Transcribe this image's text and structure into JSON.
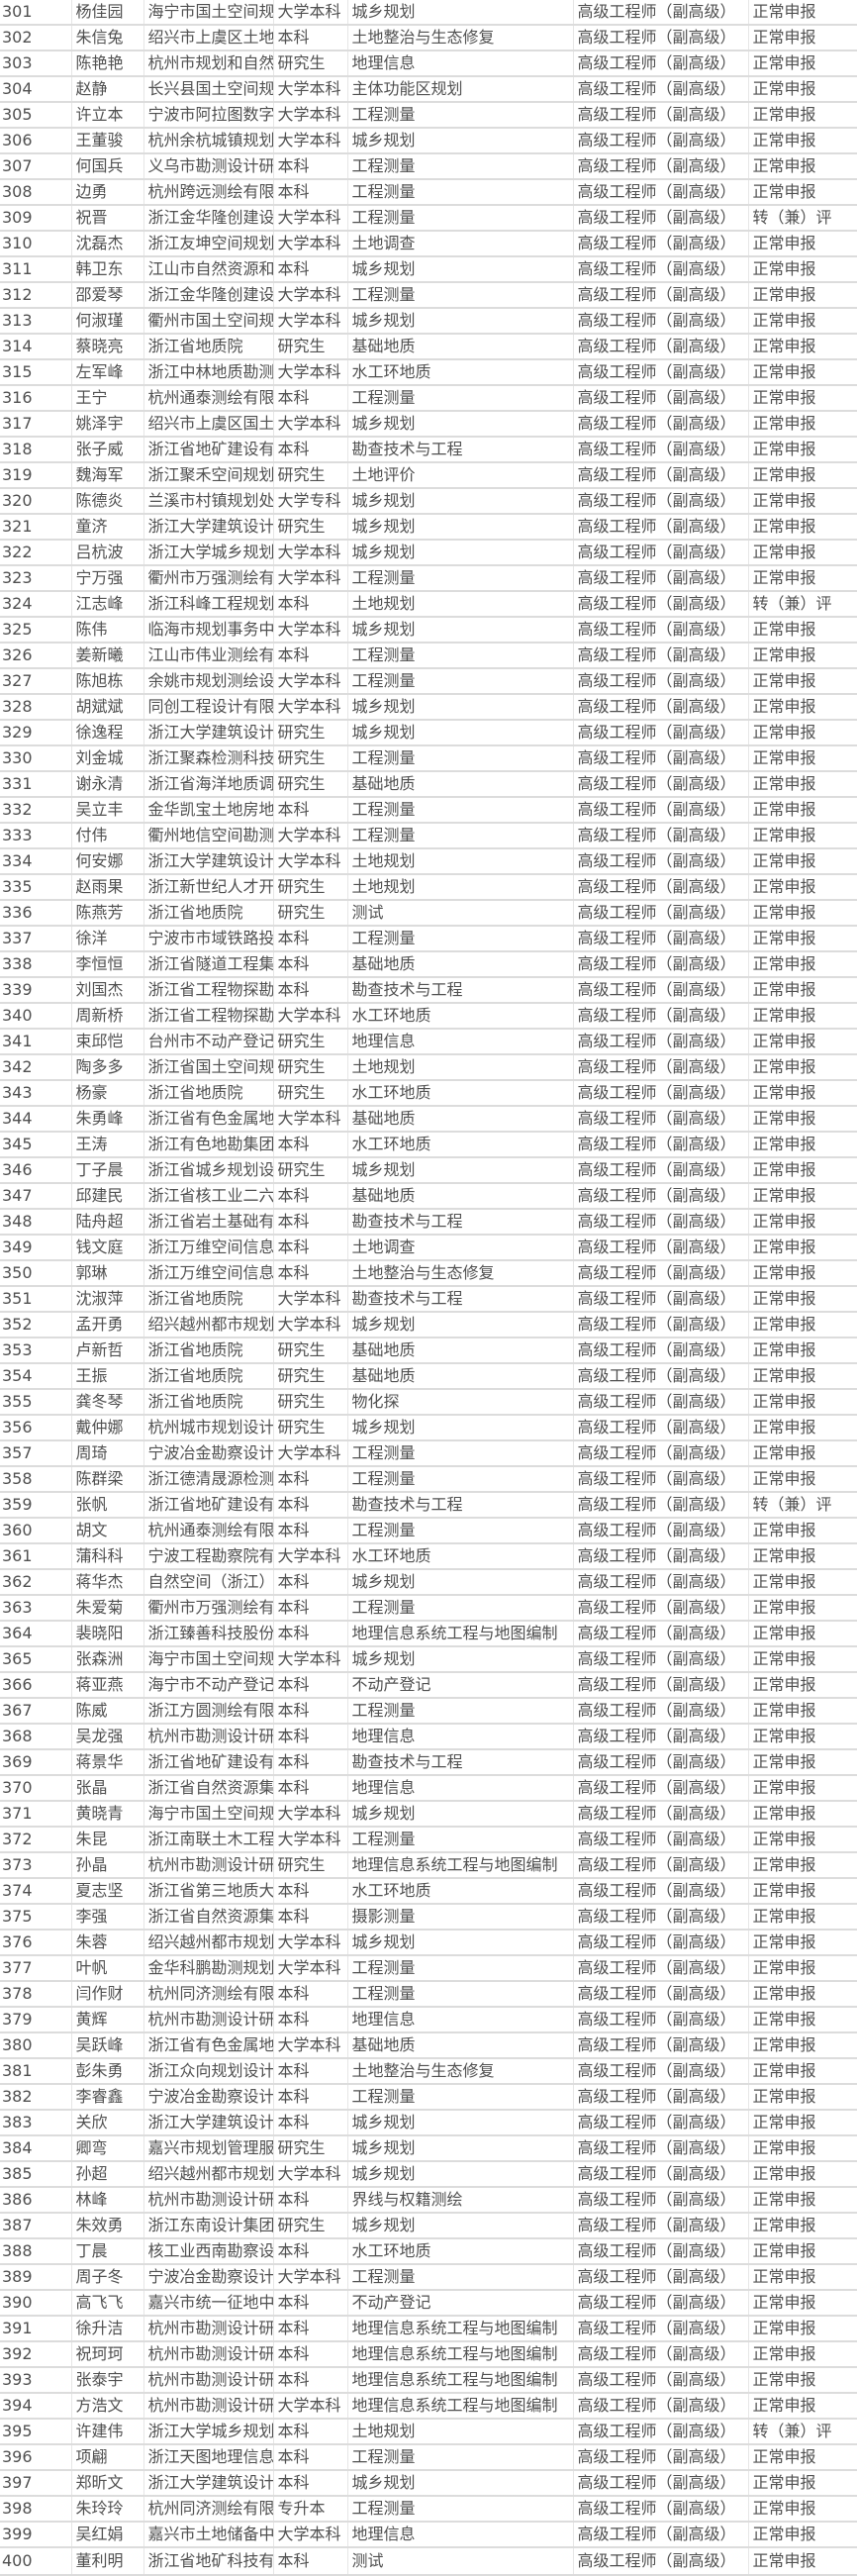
{
  "rows": [
    [
      "301",
      "杨佳园",
      "海宁市国土空间规",
      "大学本科",
      "城乡规划",
      "高级工程师（副高级）",
      "正常申报"
    ],
    [
      "302",
      "朱信兔",
      "绍兴市上虞区土地",
      "本科",
      "土地整治与生态修复",
      "高级工程师（副高级）",
      "正常申报"
    ],
    [
      "303",
      "陈艳艳",
      "杭州市规划和自然",
      "研究生",
      "地理信息",
      "高级工程师（副高级）",
      "正常申报"
    ],
    [
      "304",
      "赵静",
      "长兴县国土空间规",
      "大学本科",
      "主体功能区规划",
      "高级工程师（副高级）",
      "正常申报"
    ],
    [
      "305",
      "许立本",
      "宁波市阿拉图数字",
      "大学本科",
      "工程测量",
      "高级工程师（副高级）",
      "正常申报"
    ],
    [
      "306",
      "王董骏",
      "杭州余杭城镇规划",
      "大学本科",
      "城乡规划",
      "高级工程师（副高级）",
      "正常申报"
    ],
    [
      "307",
      "何国兵",
      "义乌市勘测设计研",
      "本科",
      "工程测量",
      "高级工程师（副高级）",
      "正常申报"
    ],
    [
      "308",
      "边勇",
      "杭州跨远测绘有限",
      "本科",
      "工程测量",
      "高级工程师（副高级）",
      "正常申报"
    ],
    [
      "309",
      "祝晋",
      "浙江金华隆创建设",
      "大学本科",
      "工程测量",
      "高级工程师（副高级）",
      "转（兼）评"
    ],
    [
      "310",
      "沈磊杰",
      "浙江友坤空间规划",
      "大学本科",
      "土地调查",
      "高级工程师（副高级）",
      "正常申报"
    ],
    [
      "311",
      "韩卫东",
      "江山市自然资源和",
      "本科",
      "城乡规划",
      "高级工程师（副高级）",
      "正常申报"
    ],
    [
      "312",
      "邵爱琴",
      "浙江金华隆创建设",
      "大学本科",
      "工程测量",
      "高级工程师（副高级）",
      "正常申报"
    ],
    [
      "313",
      "何淑瑾",
      "衢州市国土空间规",
      "大学本科",
      "城乡规划",
      "高级工程师（副高级）",
      "正常申报"
    ],
    [
      "314",
      "蔡晓亮",
      "浙江省地质院",
      "研究生",
      "基础地质",
      "高级工程师（副高级）",
      "正常申报"
    ],
    [
      "315",
      "左军峰",
      "浙江中林地质勘测",
      "大学本科",
      "水工环地质",
      "高级工程师（副高级）",
      "正常申报"
    ],
    [
      "316",
      "王宁",
      "杭州通泰测绘有限",
      "本科",
      "工程测量",
      "高级工程师（副高级）",
      "正常申报"
    ],
    [
      "317",
      "姚泽宇",
      "绍兴市上虞区国土",
      "大学本科",
      "城乡规划",
      "高级工程师（副高级）",
      "正常申报"
    ],
    [
      "318",
      "张子威",
      "浙江省地矿建设有",
      "本科",
      "勘查技术与工程",
      "高级工程师（副高级）",
      "正常申报"
    ],
    [
      "319",
      "魏海军",
      "浙江聚禾空间规划",
      "研究生",
      "土地评价",
      "高级工程师（副高级）",
      "正常申报"
    ],
    [
      "320",
      "陈德炎",
      "兰溪市村镇规划处",
      "大学专科",
      "城乡规划",
      "高级工程师（副高级）",
      "正常申报"
    ],
    [
      "321",
      "童济",
      "浙江大学建筑设计",
      "研究生",
      "城乡规划",
      "高级工程师（副高级）",
      "正常申报"
    ],
    [
      "322",
      "吕杭波",
      "浙江大学城乡规划",
      "大学本科",
      "城乡规划",
      "高级工程师（副高级）",
      "正常申报"
    ],
    [
      "323",
      "宁万强",
      "衢州市万强测绘有",
      "大学本科",
      "工程测量",
      "高级工程师（副高级）",
      "正常申报"
    ],
    [
      "324",
      "江志峰",
      "浙江科峰工程规划",
      "本科",
      "土地规划",
      "高级工程师（副高级）",
      "转（兼）评"
    ],
    [
      "325",
      "陈伟",
      "临海市规划事务中",
      "大学本科",
      "城乡规划",
      "高级工程师（副高级）",
      "正常申报"
    ],
    [
      "326",
      "姜新曦",
      "江山市伟业测绘有",
      "本科",
      "工程测量",
      "高级工程师（副高级）",
      "正常申报"
    ],
    [
      "327",
      "陈旭栋",
      "余姚市规划测绘设",
      "大学本科",
      "工程测量",
      "高级工程师（副高级）",
      "正常申报"
    ],
    [
      "328",
      "胡斌斌",
      "同创工程设计有限",
      "大学本科",
      "城乡规划",
      "高级工程师（副高级）",
      "正常申报"
    ],
    [
      "329",
      "徐逸程",
      "浙江大学建筑设计",
      "研究生",
      "城乡规划",
      "高级工程师（副高级）",
      "正常申报"
    ],
    [
      "330",
      "刘金城",
      "浙江聚森检测科技",
      "研究生",
      "工程测量",
      "高级工程师（副高级）",
      "正常申报"
    ],
    [
      "331",
      "谢永清",
      "浙江省海洋地质调",
      "研究生",
      "基础地质",
      "高级工程师（副高级）",
      "正常申报"
    ],
    [
      "332",
      "吴立丰",
      "金华凯宝土地房地",
      "本科",
      "工程测量",
      "高级工程师（副高级）",
      "正常申报"
    ],
    [
      "333",
      "付伟",
      "衢州地信空间勘测",
      "大学本科",
      "工程测量",
      "高级工程师（副高级）",
      "正常申报"
    ],
    [
      "334",
      "何安娜",
      "浙江大学建筑设计",
      "大学本科",
      "土地规划",
      "高级工程师（副高级）",
      "正常申报"
    ],
    [
      "335",
      "赵雨果",
      "浙江新世纪人才开",
      "研究生",
      "土地规划",
      "高级工程师（副高级）",
      "正常申报"
    ],
    [
      "336",
      "陈燕芳",
      "浙江省地质院",
      "研究生",
      "测试",
      "高级工程师（副高级）",
      "正常申报"
    ],
    [
      "337",
      "徐洋",
      "宁波市市域铁路投",
      "本科",
      "工程测量",
      "高级工程师（副高级）",
      "正常申报"
    ],
    [
      "338",
      "李恒恒",
      "浙江省隧道工程集",
      "本科",
      "基础地质",
      "高级工程师（副高级）",
      "正常申报"
    ],
    [
      "339",
      "刘国杰",
      "浙江省工程物探勘",
      "本科",
      "勘查技术与工程",
      "高级工程师（副高级）",
      "正常申报"
    ],
    [
      "340",
      "周新桥",
      "浙江省工程物探勘",
      "大学本科",
      "水工环地质",
      "高级工程师（副高级）",
      "正常申报"
    ],
    [
      "341",
      "束邱恺",
      "台州市不动产登记",
      "研究生",
      "地理信息",
      "高级工程师（副高级）",
      "正常申报"
    ],
    [
      "342",
      "陶多多",
      "浙江省国土空间规",
      "研究生",
      "土地规划",
      "高级工程师（副高级）",
      "正常申报"
    ],
    [
      "343",
      "杨豪",
      "浙江省地质院",
      "研究生",
      "水工环地质",
      "高级工程师（副高级）",
      "正常申报"
    ],
    [
      "344",
      "朱勇峰",
      "浙江省有色金属地",
      "大学本科",
      "基础地质",
      "高级工程师（副高级）",
      "正常申报"
    ],
    [
      "345",
      "王涛",
      "浙江有色地勘集团",
      "本科",
      "水工环地质",
      "高级工程师（副高级）",
      "正常申报"
    ],
    [
      "346",
      "丁子晨",
      "浙江省城乡规划设",
      "研究生",
      "城乡规划",
      "高级工程师（副高级）",
      "正常申报"
    ],
    [
      "347",
      "邱建民",
      "浙江省核工业二六",
      "本科",
      "基础地质",
      "高级工程师（副高级）",
      "正常申报"
    ],
    [
      "348",
      "陆舟超",
      "浙江省岩土基础有",
      "本科",
      "勘查技术与工程",
      "高级工程师（副高级）",
      "正常申报"
    ],
    [
      "349",
      "钱文庭",
      "浙江万维空间信息",
      "本科",
      "土地调查",
      "高级工程师（副高级）",
      "正常申报"
    ],
    [
      "350",
      "郭琳",
      "浙江万维空间信息",
      "本科",
      "土地整治与生态修复",
      "高级工程师（副高级）",
      "正常申报"
    ],
    [
      "351",
      "沈淑萍",
      "浙江省地质院",
      "大学本科",
      "勘查技术与工程",
      "高级工程师（副高级）",
      "正常申报"
    ],
    [
      "352",
      "孟开勇",
      "绍兴越州都市规划",
      "大学本科",
      "城乡规划",
      "高级工程师（副高级）",
      "正常申报"
    ],
    [
      "353",
      "卢新哲",
      "浙江省地质院",
      "研究生",
      "基础地质",
      "高级工程师（副高级）",
      "正常申报"
    ],
    [
      "354",
      "王振",
      "浙江省地质院",
      "研究生",
      "基础地质",
      "高级工程师（副高级）",
      "正常申报"
    ],
    [
      "355",
      "龚冬琴",
      "浙江省地质院",
      "研究生",
      "物化探",
      "高级工程师（副高级）",
      "正常申报"
    ],
    [
      "356",
      "戴仲娜",
      "杭州城市规划设计",
      "研究生",
      "城乡规划",
      "高级工程师（副高级）",
      "正常申报"
    ],
    [
      "357",
      "周琦",
      "宁波冶金勘察设计",
      "大学本科",
      "工程测量",
      "高级工程师（副高级）",
      "正常申报"
    ],
    [
      "358",
      "陈群梁",
      "浙江德清晟源检测",
      "本科",
      "工程测量",
      "高级工程师（副高级）",
      "正常申报"
    ],
    [
      "359",
      "张帆",
      "浙江省地矿建设有",
      "本科",
      "勘查技术与工程",
      "高级工程师（副高级）",
      "转（兼）评"
    ],
    [
      "360",
      "胡文",
      "杭州通泰测绘有限",
      "本科",
      "工程测量",
      "高级工程师（副高级）",
      "正常申报"
    ],
    [
      "361",
      "蒲科科",
      "宁波工程勘察院有",
      "大学本科",
      "水工环地质",
      "高级工程师（副高级）",
      "正常申报"
    ],
    [
      "362",
      "蒋华杰",
      "自然空间（浙江）",
      "本科",
      "城乡规划",
      "高级工程师（副高级）",
      "正常申报"
    ],
    [
      "363",
      "朱爱菊",
      "衢州市万强测绘有",
      "本科",
      "工程测量",
      "高级工程师（副高级）",
      "正常申报"
    ],
    [
      "364",
      "裴晓阳",
      "浙江臻善科技股份",
      "本科",
      "地理信息系统工程与地图编制",
      "高级工程师（副高级）",
      "正常申报"
    ],
    [
      "365",
      "张森洲",
      "海宁市国土空间规",
      "大学本科",
      "城乡规划",
      "高级工程师（副高级）",
      "正常申报"
    ],
    [
      "366",
      "蒋亚燕",
      "海宁市不动产登记",
      "本科",
      "不动产登记",
      "高级工程师（副高级）",
      "正常申报"
    ],
    [
      "367",
      "陈威",
      "浙江方圆测绘有限",
      "本科",
      "工程测量",
      "高级工程师（副高级）",
      "正常申报"
    ],
    [
      "368",
      "吴龙强",
      "杭州市勘测设计研",
      "本科",
      "地理信息",
      "高级工程师（副高级）",
      "正常申报"
    ],
    [
      "369",
      "蒋景华",
      "浙江省地矿建设有",
      "本科",
      "勘查技术与工程",
      "高级工程师（副高级）",
      "正常申报"
    ],
    [
      "370",
      "张晶",
      "浙江省自然资源集",
      "本科",
      "地理信息",
      "高级工程师（副高级）",
      "正常申报"
    ],
    [
      "371",
      "黄晓青",
      "海宁市国土空间规",
      "大学本科",
      "城乡规划",
      "高级工程师（副高级）",
      "正常申报"
    ],
    [
      "372",
      "朱昆",
      "浙江南联土木工程",
      "大学本科",
      "工程测量",
      "高级工程师（副高级）",
      "正常申报"
    ],
    [
      "373",
      "孙晶",
      "杭州市勘测设计研",
      "研究生",
      "地理信息系统工程与地图编制",
      "高级工程师（副高级）",
      "正常申报"
    ],
    [
      "374",
      "夏志坚",
      "浙江省第三地质大",
      "本科",
      "水工环地质",
      "高级工程师（副高级）",
      "正常申报"
    ],
    [
      "375",
      "李强",
      "浙江省自然资源集",
      "本科",
      "摄影测量",
      "高级工程师（副高级）",
      "正常申报"
    ],
    [
      "376",
      "朱蓉",
      "绍兴越州都市规划",
      "大学本科",
      "城乡规划",
      "高级工程师（副高级）",
      "正常申报"
    ],
    [
      "377",
      "叶帆",
      "金华科鹏勘测规划",
      "大学本科",
      "工程测量",
      "高级工程师（副高级）",
      "正常申报"
    ],
    [
      "378",
      "闫作财",
      "杭州同济测绘有限",
      "本科",
      "工程测量",
      "高级工程师（副高级）",
      "正常申报"
    ],
    [
      "379",
      "黄辉",
      "杭州市勘测设计研",
      "本科",
      "地理信息",
      "高级工程师（副高级）",
      "正常申报"
    ],
    [
      "380",
      "吴跃峰",
      "浙江省有色金属地",
      "大学本科",
      "基础地质",
      "高级工程师（副高级）",
      "正常申报"
    ],
    [
      "381",
      "彭朱勇",
      "浙江众向规划设计",
      "本科",
      "土地整治与生态修复",
      "高级工程师（副高级）",
      "正常申报"
    ],
    [
      "382",
      "李睿鑫",
      "宁波冶金勘察设计",
      "本科",
      "工程测量",
      "高级工程师（副高级）",
      "正常申报"
    ],
    [
      "383",
      "关欣",
      "浙江大学建筑设计",
      "本科",
      "城乡规划",
      "高级工程师（副高级）",
      "正常申报"
    ],
    [
      "384",
      "卿弯",
      "嘉兴市规划管理服",
      "研究生",
      "城乡规划",
      "高级工程师（副高级）",
      "正常申报"
    ],
    [
      "385",
      "孙超",
      "绍兴越州都市规划",
      "大学本科",
      "城乡规划",
      "高级工程师（副高级）",
      "正常申报"
    ],
    [
      "386",
      "林峰",
      "杭州市勘测设计研",
      "本科",
      "界线与权籍测绘",
      "高级工程师（副高级）",
      "正常申报"
    ],
    [
      "387",
      "朱效勇",
      "浙江东南设计集团",
      "研究生",
      "城乡规划",
      "高级工程师（副高级）",
      "正常申报"
    ],
    [
      "388",
      "丁晨",
      "核工业西南勘察设",
      "本科",
      "水工环地质",
      "高级工程师（副高级）",
      "正常申报"
    ],
    [
      "389",
      "周子冬",
      "宁波冶金勘察设计",
      "大学本科",
      "工程测量",
      "高级工程师（副高级）",
      "正常申报"
    ],
    [
      "390",
      "高飞飞",
      "嘉兴市统一征地中",
      "本科",
      "不动产登记",
      "高级工程师（副高级）",
      "正常申报"
    ],
    [
      "391",
      "徐升洁",
      "杭州市勘测设计研",
      "本科",
      "地理信息系统工程与地图编制",
      "高级工程师（副高级）",
      "正常申报"
    ],
    [
      "392",
      "祝珂珂",
      "杭州市勘测设计研",
      "本科",
      "地理信息系统工程与地图编制",
      "高级工程师（副高级）",
      "正常申报"
    ],
    [
      "393",
      "张泰宇",
      "杭州市勘测设计研",
      "本科",
      "地理信息系统工程与地图编制",
      "高级工程师（副高级）",
      "正常申报"
    ],
    [
      "394",
      "方浩文",
      "杭州市勘测设计研",
      "大学本科",
      "地理信息系统工程与地图编制",
      "高级工程师（副高级）",
      "正常申报"
    ],
    [
      "395",
      "许建伟",
      "浙江大学城乡规划",
      "本科",
      "土地规划",
      "高级工程师（副高级）",
      "转（兼）评"
    ],
    [
      "396",
      "项翩",
      "浙江天图地理信息",
      "本科",
      "工程测量",
      "高级工程师（副高级）",
      "正常申报"
    ],
    [
      "397",
      "郑昕文",
      "浙江大学建筑设计",
      "本科",
      "城乡规划",
      "高级工程师（副高级）",
      "正常申报"
    ],
    [
      "398",
      "朱玲玲",
      "杭州同济测绘有限",
      "专升本",
      "工程测量",
      "高级工程师（副高级）",
      "正常申报"
    ],
    [
      "399",
      "吴红娟",
      "嘉兴市土地储备中",
      "大学本科",
      "地理信息",
      "高级工程师（副高级）",
      "正常申报"
    ],
    [
      "400",
      "董利明",
      "浙江省地矿科技有",
      "本科",
      "测试",
      "高级工程师（副高级）",
      "正常申报"
    ]
  ]
}
